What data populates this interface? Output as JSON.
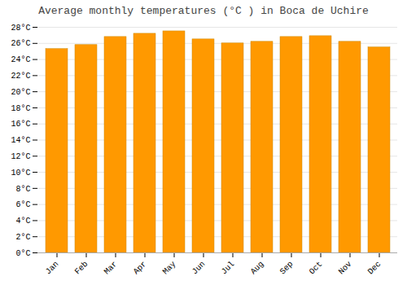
{
  "chart_data": {
    "type": "bar",
    "title": "Average monthly temperatures (°C ) in Boca de Uchire",
    "categories": [
      "Jan",
      "Feb",
      "Mar",
      "Apr",
      "May",
      "Jun",
      "Jul",
      "Aug",
      "Sep",
      "Oct",
      "Nov",
      "Dec"
    ],
    "values": [
      25.3,
      25.8,
      26.8,
      27.2,
      27.5,
      26.5,
      26.0,
      26.2,
      26.8,
      26.9,
      26.2,
      25.5
    ],
    "color": "#FF9900",
    "ylim": [
      0,
      28
    ],
    "yticks": [
      {
        "value": 0,
        "label": "0°C"
      },
      {
        "value": 2,
        "label": "2°C"
      },
      {
        "value": 4,
        "label": "4°C"
      },
      {
        "value": 6,
        "label": "6°C"
      },
      {
        "value": 8,
        "label": "8°C"
      },
      {
        "value": 10,
        "label": "10°C"
      },
      {
        "value": 12,
        "label": "12°C"
      },
      {
        "value": 14,
        "label": "14°C"
      },
      {
        "value": 16,
        "label": "16°C"
      },
      {
        "value": 18,
        "label": "18°C"
      },
      {
        "value": 20,
        "label": "20°C"
      },
      {
        "value": 22,
        "label": "22°C"
      },
      {
        "value": 24,
        "label": "24°C"
      },
      {
        "value": 26,
        "label": "26°C"
      },
      {
        "value": 28,
        "label": "28°C"
      }
    ],
    "grid": true
  }
}
